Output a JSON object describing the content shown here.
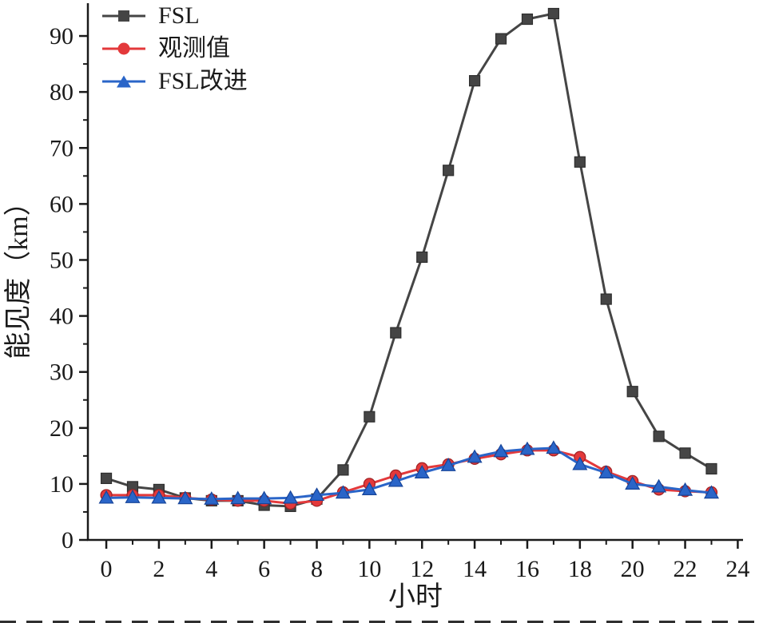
{
  "chart_data": {
    "type": "line",
    "title": "",
    "xlabel": "小时",
    "ylabel": "能见度（km）",
    "x": [
      0,
      1,
      2,
      3,
      4,
      5,
      6,
      7,
      8,
      9,
      10,
      11,
      12,
      13,
      14,
      15,
      16,
      17,
      18,
      19,
      20,
      21,
      22,
      23
    ],
    "series": [
      {
        "name": "FSL",
        "marker": "square",
        "color": "#454545",
        "edge": "#2e2e2e",
        "values": [
          11,
          9.5,
          9,
          7.5,
          7,
          7,
          6.2,
          6,
          7.3,
          12.5,
          22,
          37,
          50.5,
          66,
          82,
          89.5,
          93,
          94,
          67.5,
          43,
          26.5,
          18.5,
          15.5,
          12.7
        ]
      },
      {
        "name": "观测值",
        "marker": "circle",
        "color": "#e3393b",
        "edge": "#a02224",
        "values": [
          8,
          8,
          8,
          7.5,
          7.2,
          7,
          7,
          6.5,
          7,
          8.5,
          10,
          11.5,
          12.8,
          13.5,
          14.5,
          15.3,
          16,
          16,
          14.8,
          12.2,
          10.5,
          9,
          8.7,
          8.5
        ]
      },
      {
        "name": "FSL改进",
        "marker": "triangle",
        "color": "#2a65c8",
        "edge": "#17459a",
        "values": [
          7.5,
          7.6,
          7.5,
          7.4,
          7.3,
          7.4,
          7.4,
          7.5,
          8,
          8.4,
          9,
          10.5,
          12,
          13.3,
          14.8,
          15.8,
          16.2,
          16.4,
          13.5,
          12,
          10,
          9.5,
          8.9,
          8.4
        ]
      }
    ],
    "xlim": [
      -0.7,
      24.2
    ],
    "ylim": [
      0,
      95
    ],
    "x_ticks": [
      0,
      2,
      4,
      6,
      8,
      10,
      12,
      14,
      16,
      18,
      20,
      22,
      24
    ],
    "y_ticks": [
      0,
      10,
      20,
      30,
      40,
      50,
      60,
      70,
      80,
      90
    ],
    "x_minor_step": 1,
    "y_minor_step": 5,
    "legend_position": "top-left",
    "grid": false,
    "axis_color": "#1a1a1a",
    "text_color": "#1a1a1a"
  }
}
